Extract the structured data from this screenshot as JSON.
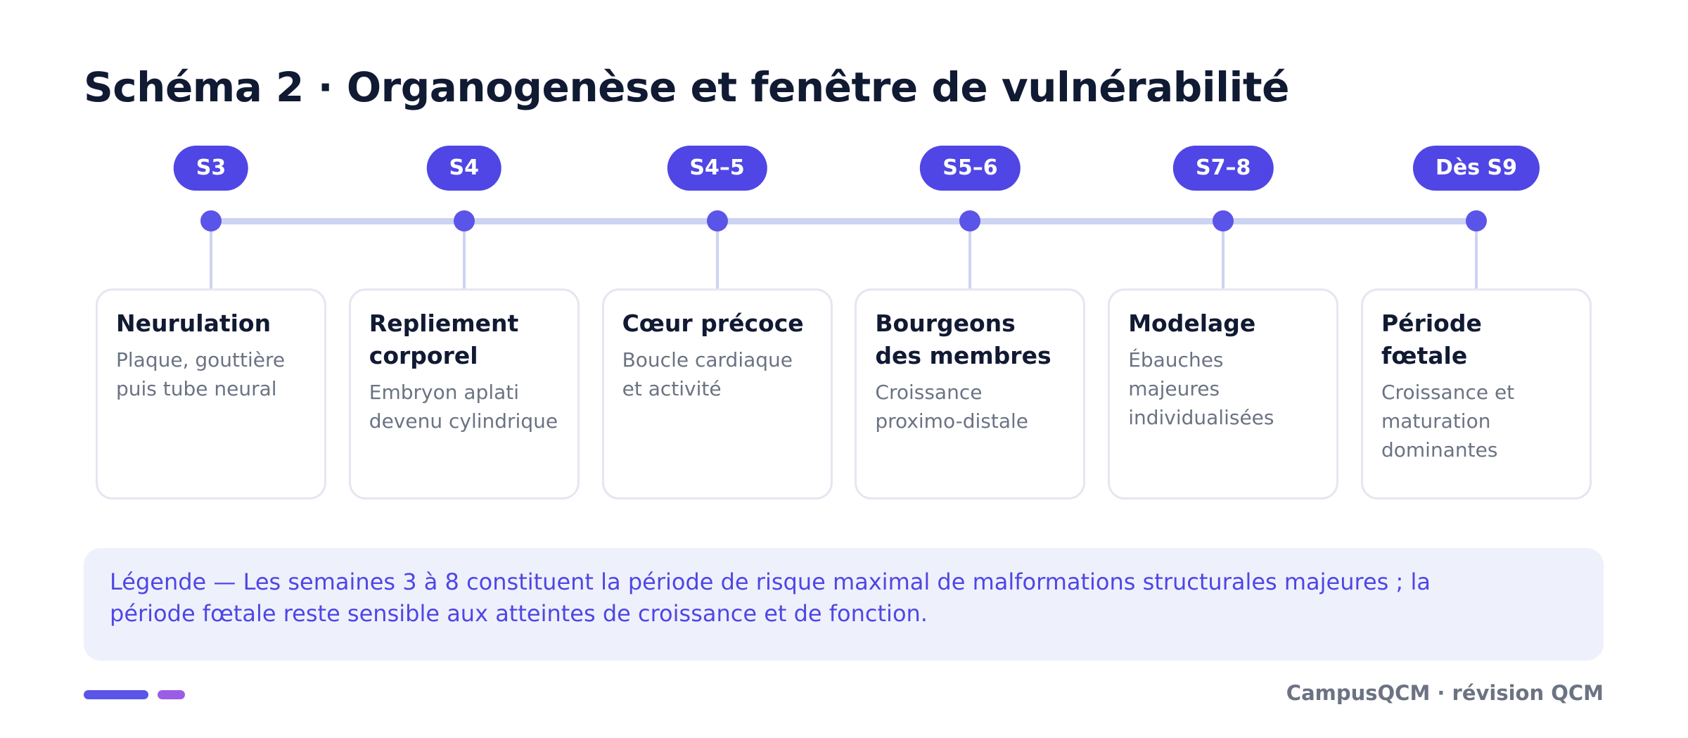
{
  "header": {
    "title": "Schéma 2 · Organogenèse et fenêtre de vulnérabilité"
  },
  "steps": [
    {
      "badge": "S3",
      "title": "Neurulation",
      "description": "Plaque, gouttière puis tube neural"
    },
    {
      "badge": "S4",
      "title": "Repliement corporel",
      "description": "Embryon aplati devenu cylindrique"
    },
    {
      "badge": "S4–5",
      "title": "Cœur précoce",
      "description": "Boucle cardiaque et activité"
    },
    {
      "badge": "S5–6",
      "title": "Bourgeons des membres",
      "description": "Croissance proximo-distale"
    },
    {
      "badge": "S7–8",
      "title": "Modelage",
      "description": "Ébauches majeures individualisées"
    },
    {
      "badge": "Dès S9",
      "title": "Période fœtale",
      "description": "Croissance et maturation dominantes"
    }
  ],
  "legend": {
    "text": "Légende — Les semaines 3 à 8 constituent la période de risque maximal de malformations structurales majeures ; la période fœtale reste sensible aux atteintes de croissance et de fonction."
  },
  "footer": {
    "brand": "CampusQCM · révision QCM"
  }
}
